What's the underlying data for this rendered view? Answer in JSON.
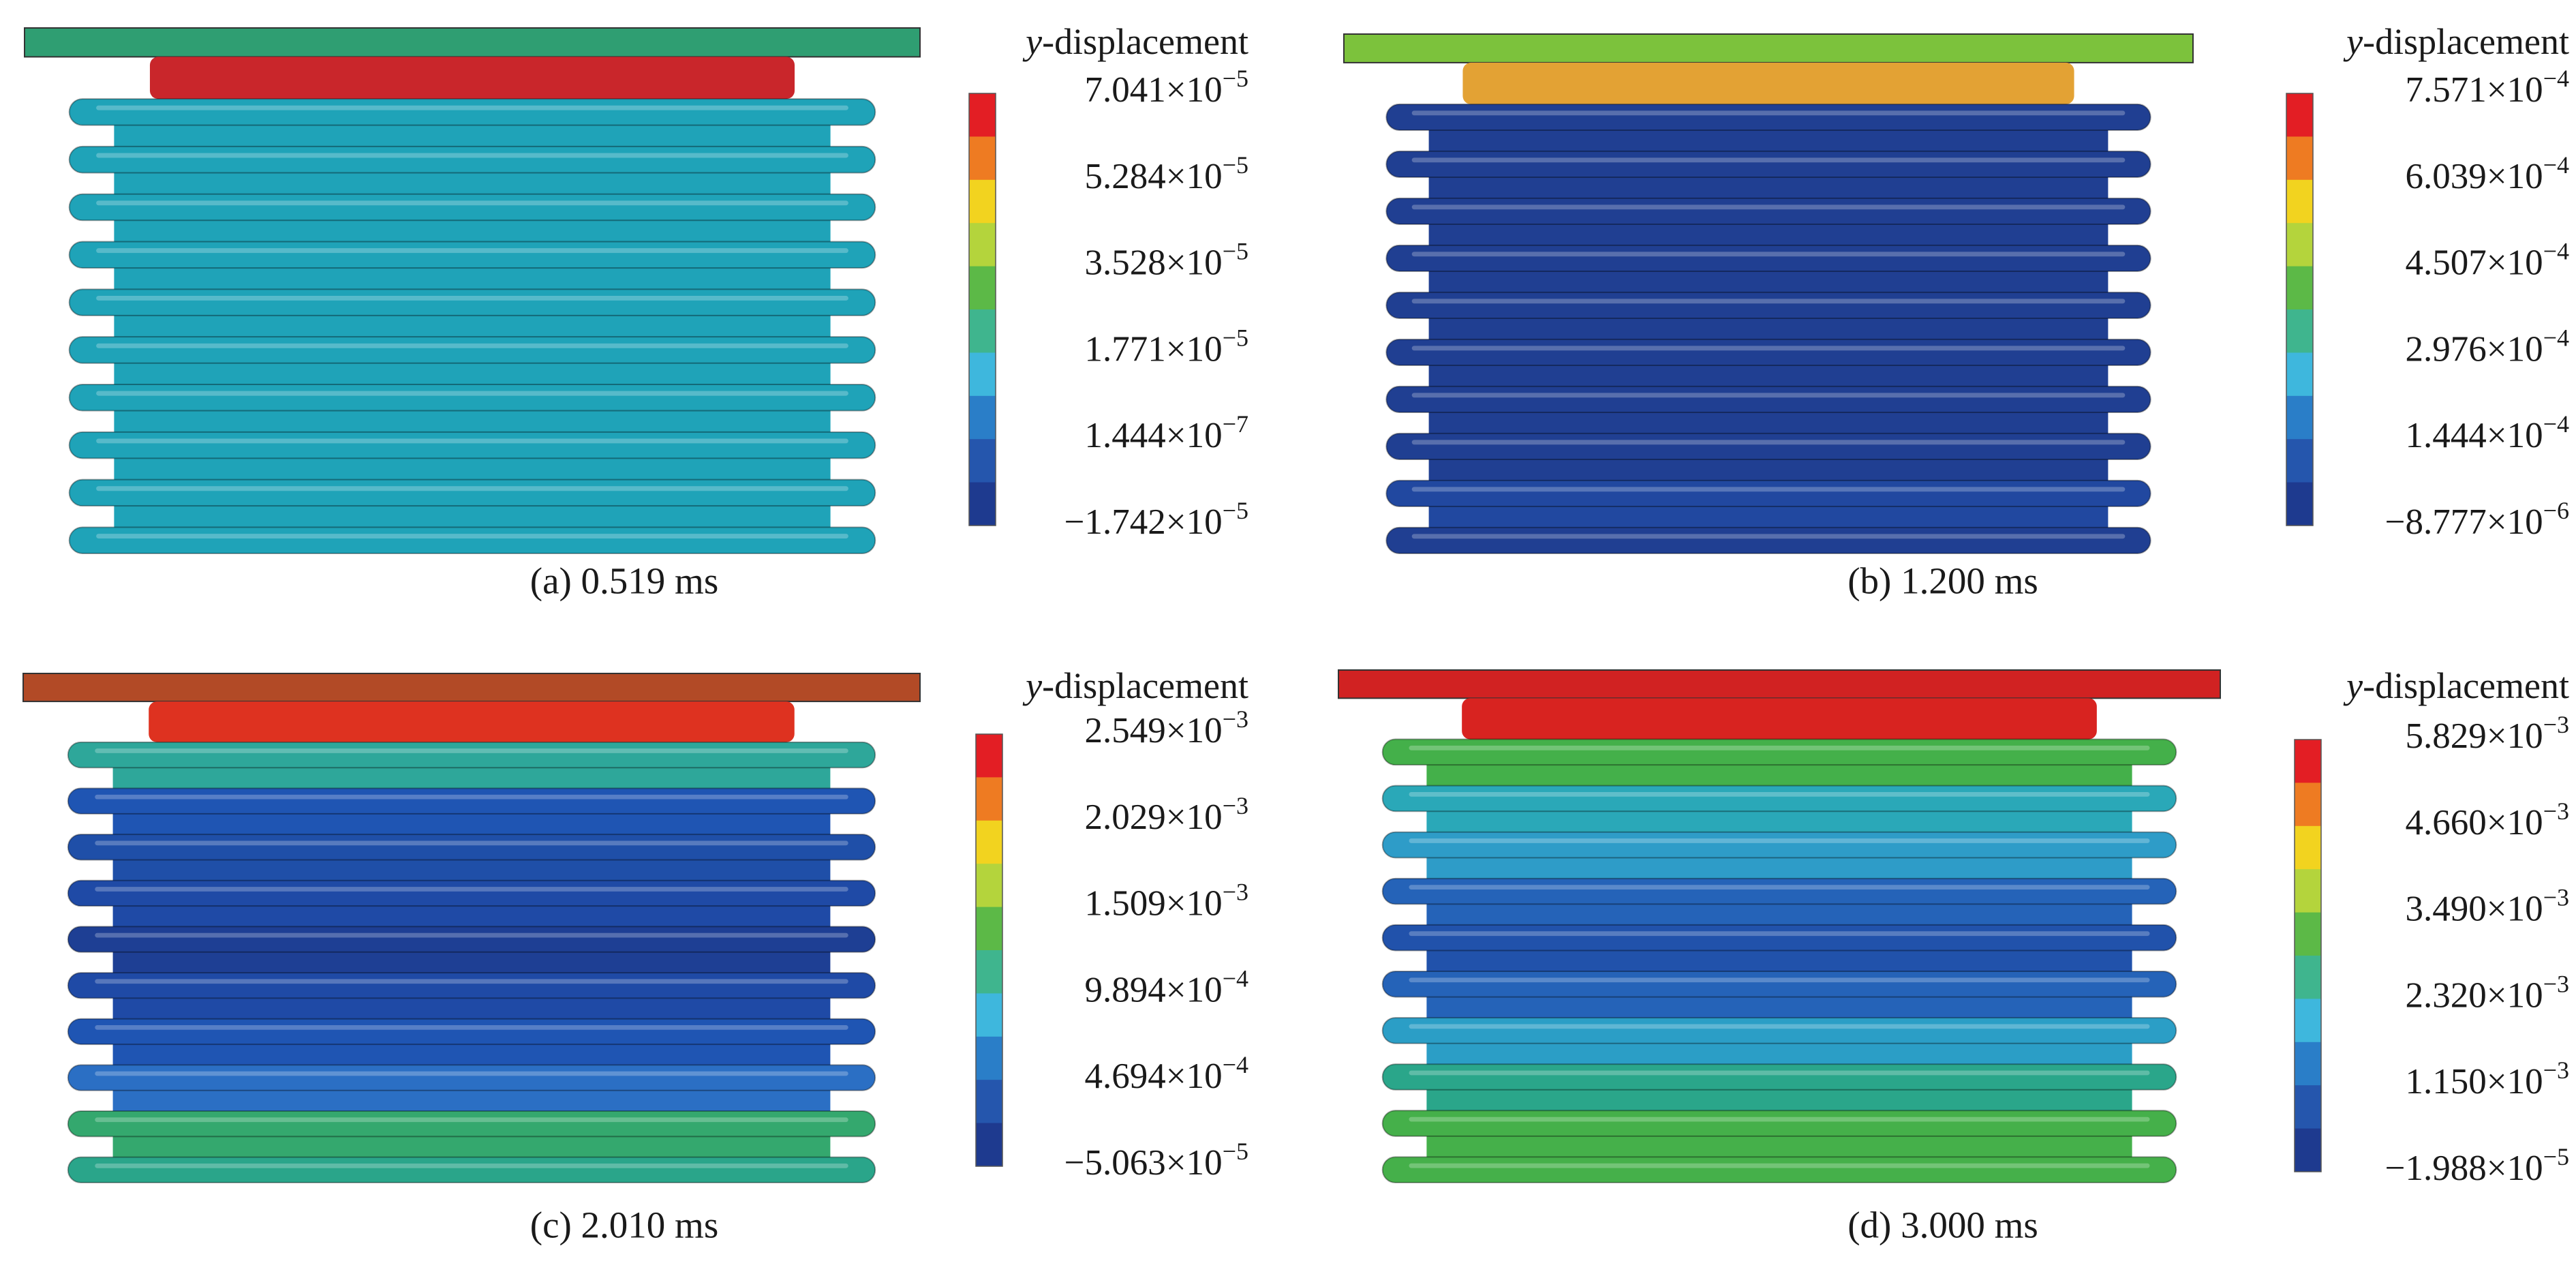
{
  "colormap": [
    "#e31e24",
    "#ee7b22",
    "#f2d31f",
    "#b4d43c",
    "#5cb947",
    "#3fb58e",
    "#3eb7dd",
    "#2a7ec8",
    "#2556ad",
    "#1e3a8f"
  ],
  "panels": [
    {
      "caption": "(a) 0.519 ms",
      "legend": {
        "title_var": "y",
        "title_rest": "-displacement",
        "ticks": [
          {
            "text": "7.041×10",
            "exponent": "−5"
          },
          {
            "text": "5.284×10",
            "exponent": "−5"
          },
          {
            "text": "3.528×10",
            "exponent": "−5"
          },
          {
            "text": "1.771×10",
            "exponent": "−5"
          },
          {
            "text": "1.444×10",
            "exponent": "−7"
          },
          {
            "text": "−1.742×10",
            "exponent": "−5"
          }
        ]
      },
      "flange_color": "#2f9e72",
      "top_color": "#c9262b",
      "ring_colors": [
        "#1fa3b8",
        "#1fa3b8",
        "#1fa3b8",
        "#1fa3b8",
        "#1fa3b8",
        "#1fa3b8",
        "#1fa3b8",
        "#1fa3b8",
        "#1fa3b8",
        "#1fa3b8"
      ]
    },
    {
      "caption": "(b) 1.200 ms",
      "legend": {
        "title_var": "y",
        "title_rest": "-displacement",
        "ticks": [
          {
            "text": "7.571×10",
            "exponent": "−4"
          },
          {
            "text": "6.039×10",
            "exponent": "−4"
          },
          {
            "text": "4.507×10",
            "exponent": "−4"
          },
          {
            "text": "2.976×10",
            "exponent": "−4"
          },
          {
            "text": "1.444×10",
            "exponent": "−4"
          },
          {
            "text": "−8.777×10",
            "exponent": "−6"
          }
        ]
      },
      "flange_color": "#7cc23c",
      "top_color": "#e3a234",
      "ring_colors": [
        "#203f92",
        "#203f92",
        "#203f92",
        "#203f92",
        "#203f92",
        "#203f92",
        "#203f92",
        "#203f92",
        "#2148a0",
        "#203f92"
      ]
    },
    {
      "caption": "(c) 2.010 ms",
      "legend": {
        "title_var": "y",
        "title_rest": "-displacement",
        "ticks": [
          {
            "text": "2.549×10",
            "exponent": "−3"
          },
          {
            "text": "2.029×10",
            "exponent": "−3"
          },
          {
            "text": "1.509×10",
            "exponent": "−3"
          },
          {
            "text": "9.894×10",
            "exponent": "−4"
          },
          {
            "text": "4.694×10",
            "exponent": "−4"
          },
          {
            "text": "−5.063×10",
            "exponent": "−5"
          }
        ]
      },
      "flange_color": "#b24a26",
      "top_color": "#de3220",
      "ring_colors": [
        "#2ea79a",
        "#1f55b3",
        "#1f4fa8",
        "#1f4aa6",
        "#1e3f94",
        "#1f4aa6",
        "#1f55b3",
        "#2b6fc4",
        "#34a86e",
        "#2aa58a"
      ]
    },
    {
      "caption": "(d) 3.000 ms",
      "legend": {
        "title_var": "y",
        "title_rest": "-displacement",
        "ticks": [
          {
            "text": "5.829×10",
            "exponent": "−3"
          },
          {
            "text": "4.660×10",
            "exponent": "−3"
          },
          {
            "text": "3.490×10",
            "exponent": "−3"
          },
          {
            "text": "2.320×10",
            "exponent": "−3"
          },
          {
            "text": "1.150×10",
            "exponent": "−3"
          },
          {
            "text": "−1.988×10",
            "exponent": "−5"
          }
        ]
      },
      "flange_color": "#d12222",
      "top_color": "#d82320",
      "ring_colors": [
        "#44b04a",
        "#2aa8b8",
        "#2e9cc8",
        "#2563b8",
        "#2152ab",
        "#2563b8",
        "#2b9ec6",
        "#2aa68a",
        "#45b04a",
        "#45b04a"
      ]
    }
  ]
}
